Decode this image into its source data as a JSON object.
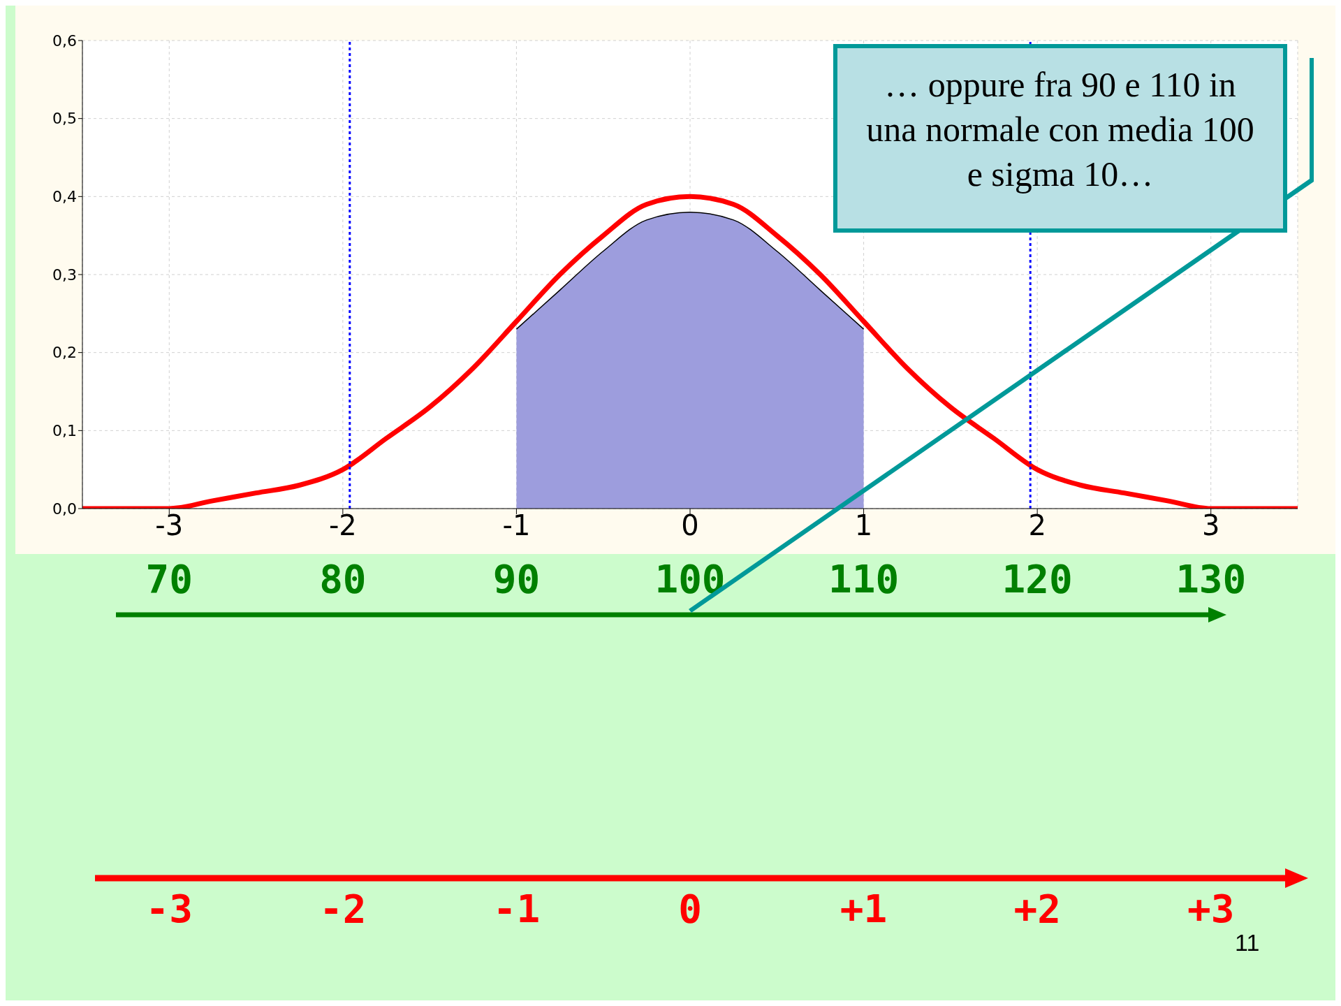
{
  "chart_data": {
    "type": "line",
    "xlim": [
      -3.5,
      3.5
    ],
    "xticks": [
      -3,
      -2,
      -1,
      0,
      1,
      2,
      3
    ],
    "ylim": [
      0,
      0.6
    ],
    "yticks": [
      {
        "value": 0,
        "label": "0,0"
      },
      {
        "value": 0.1,
        "label": "0,1"
      },
      {
        "value": 0.2,
        "label": "0,2"
      },
      {
        "value": 0.3,
        "label": "0,3"
      },
      {
        "value": 0.4,
        "label": "0,4"
      },
      {
        "value": 0.5,
        "label": "0,5"
      },
      {
        "value": 0.6,
        "label": "0,6"
      }
    ],
    "x2lim": [
      65,
      135
    ],
    "x2ticks": [
      70,
      80,
      90,
      100,
      110,
      120,
      130
    ],
    "grid": true,
    "marker": "none",
    "series": [
      {
        "color": "#ff0000",
        "x": [
          -3.5,
          -3.25,
          -3,
          -2.75,
          -2.5,
          -2.25,
          -2,
          -1.75,
          -1.5,
          -1.25,
          -1,
          -0.75,
          -0.5,
          -0.25,
          0,
          0.25,
          0.5,
          0.75,
          1,
          1.25,
          1.5,
          1.75,
          2,
          2.25,
          2.5,
          2.75,
          3,
          3.25,
          3.5
        ],
        "values": [
          0.0,
          0.0,
          0.0,
          0.01,
          0.02,
          0.03,
          0.05,
          0.09,
          0.13,
          0.18,
          0.24,
          0.3,
          0.35,
          0.39,
          0.4,
          0.39,
          0.35,
          0.3,
          0.24,
          0.18,
          0.13,
          0.09,
          0.05,
          0.03,
          0.02,
          0.01,
          0.0,
          0.0,
          0.0
        ]
      },
      {
        "type": "area",
        "color": "#9d9ddd",
        "x": [
          -1,
          -0.75,
          -0.5,
          -0.25,
          0,
          0.25,
          0.5,
          0.75,
          1
        ],
        "values": [
          0.23,
          0.28,
          0.33,
          0.37,
          0.38,
          0.37,
          0.33,
          0.28,
          0.23
        ]
      }
    ],
    "ref_lines": [
      {
        "axis": "x",
        "value": -1.96,
        "color": "#0000ff",
        "line_style": "dotted"
      },
      {
        "axis": "x",
        "value": 1.96,
        "color": "#0000ff",
        "line_style": "dotted"
      }
    ],
    "annotations": [
      "… oppure fra 90 e 110 in una normale con media 100 e sigma 10…",
      "-3",
      "-2",
      "-1",
      "0",
      "+1",
      "+2",
      "+3",
      "11"
    ]
  }
}
